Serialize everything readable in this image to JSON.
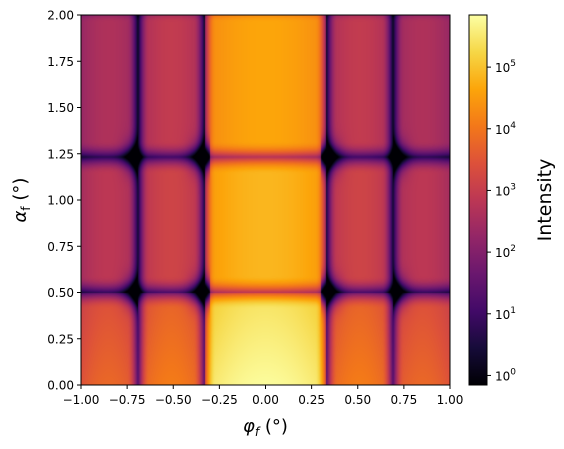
{
  "chart_data": {
    "type": "heatmap",
    "title": "",
    "xlabel_base": "φ",
    "xlabel_sub": "f",
    "xlabel_unit": " (°)",
    "ylabel_base": "α",
    "ylabel_sub": "f",
    "ylabel_unit": " (°)",
    "xlim": [
      -1.0,
      1.0
    ],
    "ylim": [
      0.0,
      2.0
    ],
    "x_ticks": [
      -1.0,
      -0.75,
      -0.5,
      -0.25,
      0.0,
      0.25,
      0.5,
      0.75,
      1.0
    ],
    "x_tick_labels": [
      "−1.00",
      "−0.75",
      "−0.50",
      "−0.25",
      "0.00",
      "0.25",
      "0.50",
      "0.75",
      "1.00"
    ],
    "y_ticks": [
      0.0,
      0.25,
      0.5,
      0.75,
      1.0,
      1.25,
      1.5,
      1.75,
      2.0
    ],
    "y_tick_labels": [
      "0.00",
      "0.25",
      "0.50",
      "0.75",
      "1.00",
      "1.25",
      "1.50",
      "1.75",
      "2.00"
    ],
    "colormap": "inferno",
    "colorbar": {
      "label": "Intensity",
      "scale": "log",
      "range": [
        0.7,
        700000
      ],
      "ticks": [
        1,
        10,
        100,
        1000,
        10000,
        100000
      ],
      "tick_labels": [
        {
          "base": "10",
          "exp": "0"
        },
        {
          "base": "10",
          "exp": "1"
        },
        {
          "base": "10",
          "exp": "2"
        },
        {
          "base": "10",
          "exp": "3"
        },
        {
          "base": "10",
          "exp": "4"
        },
        {
          "base": "10",
          "exp": "5"
        }
      ]
    },
    "features": {
      "central_lobe_phi_halfwidth": 0.33,
      "side_lobe_phi_edges": [
        0.33,
        0.69,
        1.0
      ],
      "alpha_band_edges": [
        0.0,
        0.5,
        1.23,
        2.0
      ],
      "peak_intensity": 600000,
      "peak_location": [
        0.0,
        0.0
      ]
    }
  }
}
